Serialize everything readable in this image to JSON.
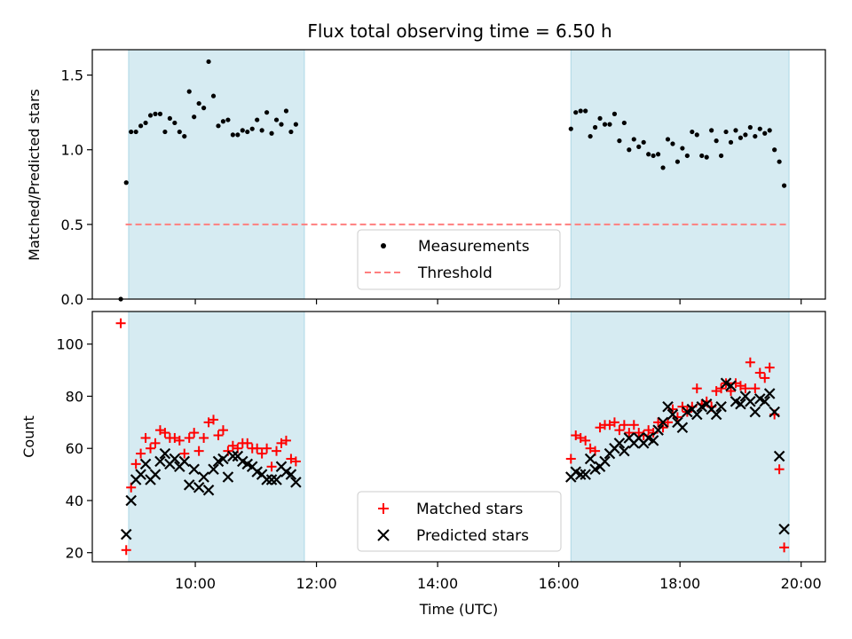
{
  "chart_data": [
    {
      "type": "scatter",
      "title": "Flux total observing time = 6.50 h",
      "ylabel": "Matched/Predicted stars",
      "xlabel": "",
      "x_unit": "hours UTC",
      "xlim": [
        8.3,
        20.4
      ],
      "ylim": [
        0.0,
        1.67
      ],
      "yticks": [
        0.0,
        0.5,
        1.0,
        1.5
      ],
      "ytick_labels": [
        "0.0",
        "0.5",
        "1.0",
        "1.5"
      ],
      "threshold": {
        "value": 0.5,
        "x_range": [
          8.85,
          19.8
        ],
        "color": "#ff7f7f",
        "label": "Threshold"
      },
      "observing_windows": [
        [
          8.9,
          11.8
        ],
        [
          16.2,
          19.8
        ]
      ],
      "window_color": "#add8e6",
      "legend": {
        "position": "lower center",
        "entries": [
          "Measurements",
          "Threshold"
        ]
      },
      "series": [
        {
          "name": "Measurements",
          "color": "#000000",
          "marker": "dot",
          "points": [
            [
              8.77,
              0.0
            ],
            [
              8.86,
              0.78
            ],
            [
              8.94,
              1.12
            ],
            [
              9.02,
              1.12
            ],
            [
              9.1,
              1.16
            ],
            [
              9.18,
              1.18
            ],
            [
              9.26,
              1.23
            ],
            [
              9.34,
              1.24
            ],
            [
              9.42,
              1.24
            ],
            [
              9.5,
              1.12
            ],
            [
              9.58,
              1.21
            ],
            [
              9.66,
              1.18
            ],
            [
              9.74,
              1.12
            ],
            [
              9.82,
              1.09
            ],
            [
              9.9,
              1.39
            ],
            [
              9.98,
              1.22
            ],
            [
              10.06,
              1.31
            ],
            [
              10.14,
              1.28
            ],
            [
              10.22,
              1.59
            ],
            [
              10.3,
              1.36
            ],
            [
              10.38,
              1.16
            ],
            [
              10.46,
              1.19
            ],
            [
              10.54,
              1.2
            ],
            [
              10.62,
              1.1
            ],
            [
              10.7,
              1.1
            ],
            [
              10.78,
              1.13
            ],
            [
              10.86,
              1.12
            ],
            [
              10.94,
              1.14
            ],
            [
              11.02,
              1.2
            ],
            [
              11.1,
              1.13
            ],
            [
              11.18,
              1.25
            ],
            [
              11.26,
              1.11
            ],
            [
              11.34,
              1.2
            ],
            [
              11.42,
              1.17
            ],
            [
              11.5,
              1.26
            ],
            [
              11.58,
              1.12
            ],
            [
              11.66,
              1.17
            ],
            [
              16.2,
              1.14
            ],
            [
              16.28,
              1.25
            ],
            [
              16.36,
              1.26
            ],
            [
              16.44,
              1.26
            ],
            [
              16.52,
              1.09
            ],
            [
              16.6,
              1.15
            ],
            [
              16.68,
              1.21
            ],
            [
              16.76,
              1.17
            ],
            [
              16.84,
              1.17
            ],
            [
              16.92,
              1.24
            ],
            [
              17.0,
              1.06
            ],
            [
              17.08,
              1.18
            ],
            [
              17.16,
              1.0
            ],
            [
              17.24,
              1.07
            ],
            [
              17.32,
              1.02
            ],
            [
              17.4,
              1.05
            ],
            [
              17.48,
              0.97
            ],
            [
              17.56,
              0.96
            ],
            [
              17.64,
              0.97
            ],
            [
              17.72,
              0.88
            ],
            [
              17.8,
              1.07
            ],
            [
              17.88,
              1.04
            ],
            [
              17.96,
              0.92
            ],
            [
              18.04,
              1.01
            ],
            [
              18.12,
              0.96
            ],
            [
              18.2,
              1.12
            ],
            [
              18.28,
              1.1
            ],
            [
              18.36,
              0.96
            ],
            [
              18.44,
              0.95
            ],
            [
              18.52,
              1.13
            ],
            [
              18.6,
              1.06
            ],
            [
              18.68,
              0.96
            ],
            [
              18.76,
              1.12
            ],
            [
              18.84,
              1.05
            ],
            [
              18.92,
              1.13
            ],
            [
              19.0,
              1.08
            ],
            [
              19.08,
              1.1
            ],
            [
              19.16,
              1.15
            ],
            [
              19.24,
              1.09
            ],
            [
              19.32,
              1.14
            ],
            [
              19.4,
              1.11
            ],
            [
              19.48,
              1.13
            ],
            [
              19.56,
              1.0
            ],
            [
              19.64,
              0.92
            ],
            [
              19.72,
              0.76
            ]
          ]
        }
      ]
    },
    {
      "type": "scatter",
      "title": "",
      "ylabel": "Count",
      "xlabel": "Time (UTC)",
      "xlim": [
        8.3,
        20.4
      ],
      "ylim": [
        16.5,
        112.5
      ],
      "yticks": [
        20,
        40,
        60,
        80,
        100
      ],
      "ytick_labels": [
        "20",
        "40",
        "60",
        "80",
        "100"
      ],
      "xticks": [
        10,
        12,
        14,
        16,
        18,
        20
      ],
      "xtick_labels": [
        "10:00",
        "12:00",
        "14:00",
        "16:00",
        "18:00",
        "20:00"
      ],
      "observing_windows": [
        [
          8.9,
          11.8
        ],
        [
          16.2,
          19.8
        ]
      ],
      "window_color": "#add8e6",
      "legend": {
        "position": "lower center",
        "entries": [
          "Matched stars",
          "Predicted stars"
        ]
      },
      "series": [
        {
          "name": "Matched stars",
          "color": "#ff0000",
          "marker": "plus",
          "points": [
            [
              8.77,
              108
            ],
            [
              8.86,
              21
            ],
            [
              8.94,
              45
            ],
            [
              9.02,
              54
            ],
            [
              9.1,
              58
            ],
            [
              9.18,
              64
            ],
            [
              9.26,
              60
            ],
            [
              9.34,
              62
            ],
            [
              9.42,
              67
            ],
            [
              9.5,
              66
            ],
            [
              9.58,
              64
            ],
            [
              9.66,
              64
            ],
            [
              9.74,
              63
            ],
            [
              9.82,
              58
            ],
            [
              9.9,
              64
            ],
            [
              9.98,
              66
            ],
            [
              10.06,
              59
            ],
            [
              10.14,
              64
            ],
            [
              10.22,
              70
            ],
            [
              10.3,
              71
            ],
            [
              10.38,
              65
            ],
            [
              10.46,
              67
            ],
            [
              10.54,
              59
            ],
            [
              10.62,
              61
            ],
            [
              10.7,
              60
            ],
            [
              10.78,
              62
            ],
            [
              10.86,
              62
            ],
            [
              10.94,
              60
            ],
            [
              11.02,
              60
            ],
            [
              11.1,
              58
            ],
            [
              11.18,
              60
            ],
            [
              11.26,
              53
            ],
            [
              11.34,
              59
            ],
            [
              11.42,
              62
            ],
            [
              11.5,
              63
            ],
            [
              11.58,
              56
            ],
            [
              11.66,
              55
            ],
            [
              16.2,
              56
            ],
            [
              16.28,
              65
            ],
            [
              16.36,
              64
            ],
            [
              16.44,
              63
            ],
            [
              16.52,
              60
            ],
            [
              16.6,
              59
            ],
            [
              16.68,
              68
            ],
            [
              16.76,
              69
            ],
            [
              16.84,
              69
            ],
            [
              16.92,
              70
            ],
            [
              17.0,
              67
            ],
            [
              17.08,
              69
            ],
            [
              17.16,
              66
            ],
            [
              17.24,
              69
            ],
            [
              17.32,
              66
            ],
            [
              17.4,
              65
            ],
            [
              17.48,
              67
            ],
            [
              17.56,
              66
            ],
            [
              17.64,
              70
            ],
            [
              17.72,
              68
            ],
            [
              17.8,
              70
            ],
            [
              17.88,
              75
            ],
            [
              17.96,
              72
            ],
            [
              18.04,
              76
            ],
            [
              18.12,
              74
            ],
            [
              18.2,
              76
            ],
            [
              18.28,
              83
            ],
            [
              18.36,
              77
            ],
            [
              18.44,
              78
            ],
            [
              18.52,
              76
            ],
            [
              18.6,
              82
            ],
            [
              18.68,
              83
            ],
            [
              18.76,
              85
            ],
            [
              18.84,
              82
            ],
            [
              18.92,
              85
            ],
            [
              19.0,
              84
            ],
            [
              19.08,
              83
            ],
            [
              19.16,
              93
            ],
            [
              19.24,
              83
            ],
            [
              19.32,
              89
            ],
            [
              19.4,
              87
            ],
            [
              19.48,
              91
            ],
            [
              19.56,
              73
            ],
            [
              19.64,
              52
            ],
            [
              19.72,
              22
            ]
          ]
        },
        {
          "name": "Predicted stars",
          "color": "#000000",
          "marker": "x",
          "points": [
            [
              8.86,
              27
            ],
            [
              8.94,
              40
            ],
            [
              9.02,
              48
            ],
            [
              9.1,
              50
            ],
            [
              9.18,
              54
            ],
            [
              9.26,
              48
            ],
            [
              9.34,
              50
            ],
            [
              9.42,
              55
            ],
            [
              9.5,
              58
            ],
            [
              9.58,
              54
            ],
            [
              9.66,
              56
            ],
            [
              9.74,
              53
            ],
            [
              9.82,
              55
            ],
            [
              9.9,
              46
            ],
            [
              9.98,
              52
            ],
            [
              10.06,
              45
            ],
            [
              10.14,
              49
            ],
            [
              10.22,
              44
            ],
            [
              10.3,
              52
            ],
            [
              10.38,
              55
            ],
            [
              10.46,
              56
            ],
            [
              10.54,
              49
            ],
            [
              10.62,
              57
            ],
            [
              10.7,
              57
            ],
            [
              10.78,
              55
            ],
            [
              10.86,
              54
            ],
            [
              10.94,
              53
            ],
            [
              11.02,
              51
            ],
            [
              11.1,
              50
            ],
            [
              11.18,
              48
            ],
            [
              11.26,
              48
            ],
            [
              11.34,
              48
            ],
            [
              11.42,
              53
            ],
            [
              11.5,
              51
            ],
            [
              11.58,
              50
            ],
            [
              11.66,
              47
            ],
            [
              16.2,
              49
            ],
            [
              16.28,
              51
            ],
            [
              16.36,
              50
            ],
            [
              16.44,
              50
            ],
            [
              16.52,
              56
            ],
            [
              16.6,
              52
            ],
            [
              16.68,
              53
            ],
            [
              16.76,
              55
            ],
            [
              16.84,
              58
            ],
            [
              16.92,
              60
            ],
            [
              17.0,
              62
            ],
            [
              17.08,
              59
            ],
            [
              17.16,
              64
            ],
            [
              17.24,
              62
            ],
            [
              17.32,
              64
            ],
            [
              17.4,
              62
            ],
            [
              17.48,
              64
            ],
            [
              17.56,
              63
            ],
            [
              17.64,
              67
            ],
            [
              17.72,
              70
            ],
            [
              17.8,
              76
            ],
            [
              17.88,
              73
            ],
            [
              17.96,
              70
            ],
            [
              18.04,
              68
            ],
            [
              18.12,
              74
            ],
            [
              18.2,
              75
            ],
            [
              18.28,
              73
            ],
            [
              18.36,
              76
            ],
            [
              18.44,
              77
            ],
            [
              18.52,
              75
            ],
            [
              18.6,
              73
            ],
            [
              18.68,
              76
            ],
            [
              18.76,
              85
            ],
            [
              18.84,
              84
            ],
            [
              18.92,
              78
            ],
            [
              19.0,
              77
            ],
            [
              19.08,
              80
            ],
            [
              19.16,
              78
            ],
            [
              19.24,
              74
            ],
            [
              19.32,
              79
            ],
            [
              19.4,
              78
            ],
            [
              19.48,
              81
            ],
            [
              19.56,
              74
            ],
            [
              19.64,
              57
            ],
            [
              19.72,
              29
            ]
          ]
        }
      ]
    }
  ]
}
